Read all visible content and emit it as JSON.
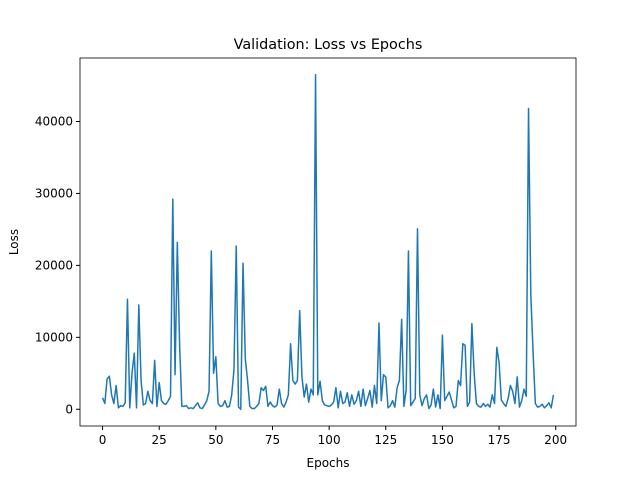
{
  "chart_data": {
    "type": "line",
    "title": "Validation: Loss vs Epochs",
    "x_label": "Epochs",
    "y_label": "Loss",
    "x": [
      0,
      1,
      2,
      3,
      4,
      5,
      6,
      7,
      8,
      9,
      10,
      11,
      12,
      13,
      14,
      15,
      16,
      17,
      18,
      19,
      20,
      21,
      22,
      23,
      24,
      25,
      26,
      27,
      28,
      29,
      30,
      31,
      32,
      33,
      34,
      35,
      36,
      37,
      38,
      39,
      40,
      41,
      42,
      43,
      44,
      45,
      46,
      47,
      48,
      49,
      50,
      51,
      52,
      53,
      54,
      55,
      56,
      57,
      58,
      59,
      60,
      61,
      62,
      63,
      64,
      65,
      66,
      67,
      68,
      69,
      70,
      71,
      72,
      73,
      74,
      75,
      76,
      77,
      78,
      79,
      80,
      81,
      82,
      83,
      84,
      85,
      86,
      87,
      88,
      89,
      90,
      91,
      92,
      93,
      94,
      95,
      96,
      97,
      98,
      99,
      100,
      101,
      102,
      103,
      104,
      105,
      106,
      107,
      108,
      109,
      110,
      111,
      112,
      113,
      114,
      115,
      116,
      117,
      118,
      119,
      120,
      121,
      122,
      123,
      124,
      125,
      126,
      127,
      128,
      129,
      130,
      131,
      132,
      133,
      134,
      135,
      136,
      137,
      138,
      139,
      140,
      141,
      142,
      143,
      144,
      145,
      146,
      147,
      148,
      149,
      150,
      151,
      152,
      153,
      154,
      155,
      156,
      157,
      158,
      159,
      160,
      161,
      162,
      163,
      164,
      165,
      166,
      167,
      168,
      169,
      170,
      171,
      172,
      173,
      174,
      175,
      176,
      177,
      178,
      179,
      180,
      181,
      182,
      183,
      184,
      185,
      186,
      187,
      188,
      189,
      190,
      191,
      192,
      193,
      194,
      195,
      196,
      197,
      198,
      199
    ],
    "series": [
      {
        "color": "#1f77b4",
        "values": [
          1600,
          800,
          4200,
          4600,
          2000,
          800,
          3300,
          200,
          500,
          400,
          900,
          15300,
          200,
          5000,
          7800,
          200,
          14500,
          4000,
          600,
          800,
          2500,
          1200,
          800,
          6800,
          400,
          3700,
          1200,
          800,
          700,
          1200,
          1800,
          29200,
          4800,
          23200,
          9000,
          400,
          400,
          500,
          100,
          200,
          100,
          500,
          900,
          200,
          100,
          600,
          1200,
          2500,
          22000,
          5000,
          7300,
          800,
          400,
          500,
          1200,
          300,
          400,
          2000,
          5500,
          22700,
          300,
          0,
          20300,
          7000,
          4000,
          400,
          100,
          100,
          400,
          800,
          3000,
          2600,
          3200,
          400,
          1000,
          500,
          300,
          600,
          2800,
          800,
          300,
          1000,
          2000,
          9100,
          4000,
          3500,
          4000,
          13700,
          4500,
          1700,
          3500,
          1000,
          2800,
          2000,
          46500,
          2000,
          3900,
          1200,
          600,
          500,
          400,
          600,
          1000,
          3000,
          200,
          2500,
          800,
          1000,
          2300,
          400,
          2000,
          700,
          1200,
          2500,
          400,
          2800,
          500,
          1500,
          2600,
          300,
          3300,
          800,
          12000,
          1200,
          4800,
          4500,
          200,
          500,
          1200,
          300,
          3000,
          4000,
          12500,
          400,
          2700,
          22000,
          500,
          1000,
          1500,
          25100,
          2000,
          500,
          1500,
          2000,
          100,
          600,
          2800,
          300,
          2000,
          100,
          10300,
          1200,
          1800,
          2400,
          1300,
          200,
          400,
          4000,
          3300,
          9100,
          8900,
          400,
          1000,
          11900,
          5000,
          800,
          400,
          300,
          800,
          400,
          700,
          300,
          2000,
          800,
          8600,
          6500,
          1300,
          800,
          400,
          1500,
          3300,
          2500,
          800,
          4500,
          300,
          1200,
          2800,
          1800,
          41800,
          16000,
          8000,
          800,
          300,
          400,
          700,
          200,
          500,
          900,
          200,
          2000
        ]
      }
    ],
    "xlim": [
      -9.95,
      208.95
    ],
    "xticks": [
      0,
      25,
      50,
      75,
      100,
      125,
      150,
      175,
      200
    ],
    "ylim": [
      -2325,
      48825
    ],
    "yticks": [
      0,
      10000,
      20000,
      30000,
      40000
    ]
  }
}
